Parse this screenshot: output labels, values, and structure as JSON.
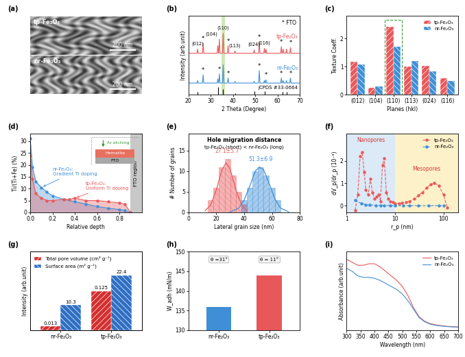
{
  "chart_data": [
    {
      "panel": "(a)",
      "type": "image",
      "images": [
        {
          "label": "tp-Fe₂O₃",
          "scale_bar": "200 nm"
        },
        {
          "label": "nr-Fe₂O₃",
          "scale_bar": "200 nm"
        }
      ]
    },
    {
      "panel": "(b)",
      "type": "line",
      "xlabel": "2 Theta (Degree)",
      "ylabel": "Intensity (arb.unit)",
      "xlim": [
        20,
        70
      ],
      "xticks": [
        20,
        30,
        40,
        50,
        60,
        70
      ],
      "ylim": [
        0,
        9.5
      ],
      "yticks": [],
      "tick_labels": "x",
      "x": [
        20,
        23.8,
        24.1,
        24.4,
        26.3,
        26.6,
        26.9,
        32.9,
        33.2,
        33.5,
        33.6,
        33.9,
        34.2,
        35.3,
        35.6,
        35.9,
        37.5,
        37.8,
        38.1,
        40.6,
        40.9,
        41.2,
        49.2,
        49.5,
        49.8,
        51.5,
        51.8,
        52.1,
        53.8,
        54.1,
        54.4,
        54.5,
        54.8,
        55.1,
        61.4,
        61.7,
        62.0,
        62.2,
        62.5,
        62.8,
        63.7,
        64.0,
        64.3,
        65.5,
        65.8,
        66.1,
        70
      ],
      "series": [
        {
          "name": "tp-Fe₂O₃",
          "color": "#e8585a",
          "values": [
            5.0,
            5.0,
            5.5,
            5.0,
            5.0,
            6.2,
            5.0,
            5.0,
            5.9,
            5.0,
            5.0,
            6.7,
            5.0,
            5.0,
            7.4,
            5.0,
            5.0,
            5.9,
            5.0,
            5.0,
            5.3,
            5.0,
            5.0,
            5.4,
            5.0,
            5.0,
            6.4,
            5.0,
            5.0,
            5.6,
            5.0,
            5.0,
            5.5,
            5.0,
            5.0,
            5.8,
            5.0,
            5.0,
            5.5,
            5.0,
            5.0,
            5.5,
            5.0,
            5.0,
            5.7,
            5.0,
            5.0
          ]
        },
        {
          "name": "nr-Fe₂O₃",
          "color": "#3f8fd6",
          "values": [
            1.4,
            1.4,
            1.7,
            1.4,
            1.4,
            2.4,
            1.4,
            1.4,
            1.9,
            1.4,
            1.4,
            2.5,
            1.4,
            1.4,
            3.6,
            1.4,
            1.4,
            2.0,
            1.4,
            1.4,
            1.6,
            1.4,
            1.4,
            1.6,
            1.4,
            1.4,
            2.9,
            1.4,
            1.4,
            1.7,
            1.4,
            1.4,
            1.8,
            1.4,
            1.4,
            2.0,
            1.4,
            1.4,
            1.7,
            1.4,
            1.4,
            1.7,
            1.4,
            1.4,
            2.0,
            1.4,
            1.4
          ]
        }
      ],
      "highlight": [
        35.0,
        36.3
      ],
      "peaks": [
        {
          "label": "(012)",
          "x": 24.1
        },
        {
          "label": "(104)",
          "x": 33.2
        },
        {
          "label": "(110)",
          "x": 35.6
        },
        {
          "label": "(113)",
          "x": 40.9
        },
        {
          "label": "(024)",
          "x": 49.5
        },
        {
          "label": "(116)",
          "x": 54.1
        }
      ],
      "fto_marker": {
        "symbol": "*",
        "label": "FTO",
        "x": [
          26.6,
          33.9,
          37.8,
          51.8,
          54.8,
          61.7,
          65.8
        ]
      },
      "reference": {
        "name": "JCPDS #33-0664",
        "x": [
          24.1,
          33.2,
          35.6,
          40.9,
          49.5,
          54.1,
          62.4,
          64.0
        ],
        "values": [
          0.3,
          0.9,
          0.7,
          0.2,
          0.4,
          0.45,
          0.3,
          0.3
        ]
      }
    },
    {
      "panel": "(c)",
      "type": "bar",
      "xlabel": "Planes (hkl)",
      "ylabel": "Texture Coeff.",
      "categories": [
        "(012)",
        "(104)",
        "(110)",
        "(113)",
        "(024)",
        "(116)"
      ],
      "series": [
        {
          "name": "tp-Fe₂O₃",
          "color": "#e8585a",
          "values": [
            1.18,
            0.25,
            2.42,
            1.0,
            1.02,
            0.58
          ]
        },
        {
          "name": "nr-Fe₂O₃",
          "color": "#3f8fd6",
          "values": [
            1.07,
            0.3,
            1.72,
            1.2,
            0.84,
            0.5
          ]
        }
      ],
      "ylim": [
        0,
        2.8
      ],
      "yticks": [
        0,
        1,
        2
      ],
      "legend": "upper right",
      "highlight": "(110)"
    },
    {
      "panel": "(d)",
      "type": "area",
      "xlabel": "Relative depth",
      "ylabel": "Ti/(Ti+Fe) (%)",
      "xlim": [
        0,
        1.0
      ],
      "xticks": [
        {
          "value": 0,
          "label": "0.0"
        },
        0.2,
        0.4,
        0.6,
        0.8
      ],
      "ylim": [
        0,
        33
      ],
      "yticks": [
        0,
        5,
        10,
        15,
        20,
        25,
        30
      ],
      "series": [
        {
          "name": "nr-Fe₂O₃",
          "color": "#3f8fd6",
          "marker": "o",
          "x": [
            0,
            0.02,
            0.05,
            0.1,
            0.15,
            0.2,
            0.3,
            0.4,
            0.5,
            0.6,
            0.7,
            0.8,
            0.85,
            0.9
          ],
          "values": [
            31,
            19,
            13,
            10.5,
            8.5,
            7,
            5.5,
            4.5,
            3.5,
            2.5,
            1.8,
            1.2,
            0.8,
            0
          ]
        },
        {
          "name": "tp-Fe₂O₃",
          "color": "#e8585a",
          "marker": "o",
          "x": [
            0,
            0.02,
            0.05,
            0.1,
            0.15,
            0.2,
            0.3,
            0.35,
            0.4,
            0.5,
            0.6,
            0.7,
            0.8,
            0.85,
            0.9
          ],
          "values": [
            24,
            14,
            8,
            6,
            5,
            5,
            5.5,
            5.5,
            6,
            5,
            5,
            4.5,
            4,
            3.5,
            0
          ]
        }
      ],
      "region": {
        "label": "FTO region",
        "x": [
          0.9,
          1.0
        ]
      },
      "annotations": [
        {
          "text": "nr-Fe₂O₃:\nGradient Ti doping",
          "x": 0.2,
          "y": 17,
          "xy": [
            0.1,
            10.5
          ],
          "color": "#3f8fd6"
        },
        {
          "text": "tp-Fe₂O₃:\nUniform Ti doping",
          "x": 0.5,
          "y": 11,
          "xy": [
            0.4,
            6
          ],
          "color": "#e8585a"
        }
      ],
      "inset": {
        "etch": "Ar etching",
        "layer": "Hematite",
        "substrate": "FTO"
      }
    },
    {
      "panel": "(e)",
      "type": "histogram",
      "title": "Hole migration distance",
      "subtitle": "tp-Fe₂O₃ (short) < nr-Fe₂O₃ (long)",
      "xlabel": "Lateral grain size (nm)",
      "ylabel": "# Number of grains",
      "xlim": [
        0,
        80
      ],
      "xticks": [
        0,
        20,
        40,
        60,
        80
      ],
      "ylim": [
        0,
        19
      ],
      "yticks": [
        0,
        5,
        10,
        15
      ],
      "series": [
        {
          "color": "#e8585a",
          "bins": [
            14,
            18,
            22,
            26,
            30,
            34,
            38,
            42
          ],
          "counts": [
            3,
            6,
            11,
            13,
            9,
            5,
            2
          ],
          "stat": "27.1±5.7",
          "fit": {
            "x": [
              12,
              16,
              20,
              24,
              27,
              30,
              34,
              38,
              42
            ],
            "values": [
              0.4,
              1.8,
              5.4,
              10.2,
              12,
              10.4,
              5.6,
              1.9,
              0.4
            ]
          }
        },
        {
          "color": "#3f8fd6",
          "bins": [
            38,
            42,
            46,
            50,
            54,
            58,
            62,
            66
          ],
          "counts": [
            3,
            6,
            10,
            11,
            9,
            6,
            3
          ],
          "stat": "51.3±6.9",
          "fit": {
            "x": [
              30,
              36,
              40,
              44,
              48,
              51,
              54,
              58,
              62,
              66,
              72
            ],
            "values": [
              0.1,
              1,
              3,
              6.3,
              10,
              11,
              10.3,
              7,
              3.3,
              1.1,
              0.1
            ]
          }
        }
      ]
    },
    {
      "panel": "(f)",
      "type": "line",
      "log": "x",
      "xlabel": "r_p (nm)",
      "ylabel": "dV_p/dr_p (10⁻³)",
      "xlim": [
        1,
        200
      ],
      "xticks": [
        1,
        10,
        100
      ],
      "ylim": [
        -0.3,
        3.2
      ],
      "yticks": [
        0,
        1,
        2
      ],
      "legend": "upper right",
      "regions": [
        {
          "label": "Nanopores",
          "x": [
            1,
            10
          ],
          "color": "#dce9f7"
        },
        {
          "label": "Mesopores",
          "x": [
            10,
            200
          ],
          "color": "#fdf1c9"
        }
      ],
      "series": [
        {
          "name": "tp-Fe₂O₃",
          "color": "#e8585a",
          "marker": "o",
          "line_style": "dashed",
          "x": [
            1.5,
            1.7,
            1.9,
            2.1,
            2.3,
            2.5,
            2.8,
            3.1,
            3.4,
            3.8,
            4.2,
            4.6,
            5,
            5.5,
            6,
            6.6,
            7.3,
            8,
            9,
            10,
            12,
            14,
            17,
            20,
            25,
            30,
            37,
            45,
            55,
            65,
            80,
            100,
            120
          ],
          "values": [
            -0.2,
            0.5,
            2.2,
            2.4,
            1.5,
            0.7,
            0.5,
            1.2,
            0.6,
            0.3,
            0.4,
            0.5,
            0.2,
            1.8,
            2.1,
            0.6,
            0.3,
            0.2,
            0.15,
            0.1,
            0.1,
            0.12,
            0.15,
            0.2,
            0.3,
            0.45,
            0.6,
            0.8,
            0.95,
            1.0,
            0.9,
            0.5,
            -0.1
          ]
        },
        {
          "name": "nr-Fe₂O₃",
          "color": "#3f8fd6",
          "marker": "o",
          "line_style": "dashed",
          "x": [
            1.5,
            2,
            2.5,
            3,
            4,
            5,
            6,
            8,
            10,
            15,
            20,
            30,
            50,
            80,
            100
          ],
          "values": [
            0.25,
            0.1,
            0.05,
            0.03,
            0.02,
            0.02,
            0.01,
            0.01,
            0,
            0,
            0,
            0,
            0,
            0,
            0
          ]
        }
      ]
    },
    {
      "panel": "(g)",
      "type": "bar",
      "ylabel": "Intensity (arb.unit)",
      "tick_labels": "x",
      "categories": [
        "nr-Fe₂O₃",
        "tp-Fe₂O₃"
      ],
      "ylim": [
        0,
        32
      ],
      "yticks": [],
      "y2lim": [
        0,
        0.25
      ],
      "y2ticks": [],
      "data_labels": true,
      "legend": "upper left",
      "series": [
        {
          "name": "Total pore volume (cm³ g⁻¹)",
          "color": "#d42f2f",
          "axis": "y2",
          "values": [
            0.013,
            0.125
          ]
        },
        {
          "name": "Surface area (m² g⁻¹)",
          "color": "#2f6fc4",
          "values": [
            10.3,
            22.4
          ]
        }
      ]
    },
    {
      "panel": "(h)",
      "type": "bar",
      "ylabel": "W_adh (mN/m)",
      "categories": [
        "nr-Fe₂O₃",
        "tp-Fe₂O₃"
      ],
      "values": [
        136,
        144
      ],
      "colors": [
        "#3f8fd6",
        "#e8585a"
      ],
      "ylim": [
        130,
        150
      ],
      "yticks": [
        130,
        135,
        140,
        145,
        150
      ],
      "bar_notes": [
        "θ =31°",
        "θ = 11°"
      ]
    },
    {
      "panel": "(i)",
      "type": "line",
      "xlabel": "Wavelength (nm)",
      "ylabel": "Absorbance (arb.unit)",
      "xlim": [
        300,
        700
      ],
      "xticks": [
        300,
        350,
        400,
        450,
        500,
        550,
        600,
        650,
        700
      ],
      "ylim": [
        0,
        2.6
      ],
      "yticks": [],
      "tick_labels": "x",
      "legend": "upper right",
      "x": [
        300,
        320,
        340,
        360,
        380,
        400,
        420,
        440,
        460,
        480,
        500,
        520,
        540,
        560,
        580,
        600,
        620,
        640,
        660,
        680,
        700
      ],
      "series": [
        {
          "name": "tp-Fe₂O₃",
          "color": "#e8585a",
          "values": [
            2.35,
            2.25,
            2.15,
            2.15,
            2.2,
            2.2,
            2.1,
            1.95,
            1.8,
            1.65,
            1.45,
            1.15,
            0.75,
            0.45,
            0.3,
            0.22,
            0.18,
            0.15,
            0.13,
            0.12,
            0.11
          ]
        },
        {
          "name": "nr-Fe₂O₃",
          "color": "#3f8fd6",
          "values": [
            2.05,
            1.95,
            1.8,
            1.75,
            1.75,
            1.72,
            1.65,
            1.55,
            1.45,
            1.35,
            1.2,
            0.98,
            0.7,
            0.42,
            0.28,
            0.2,
            0.16,
            0.14,
            0.12,
            0.11,
            0.1
          ]
        }
      ]
    }
  ]
}
